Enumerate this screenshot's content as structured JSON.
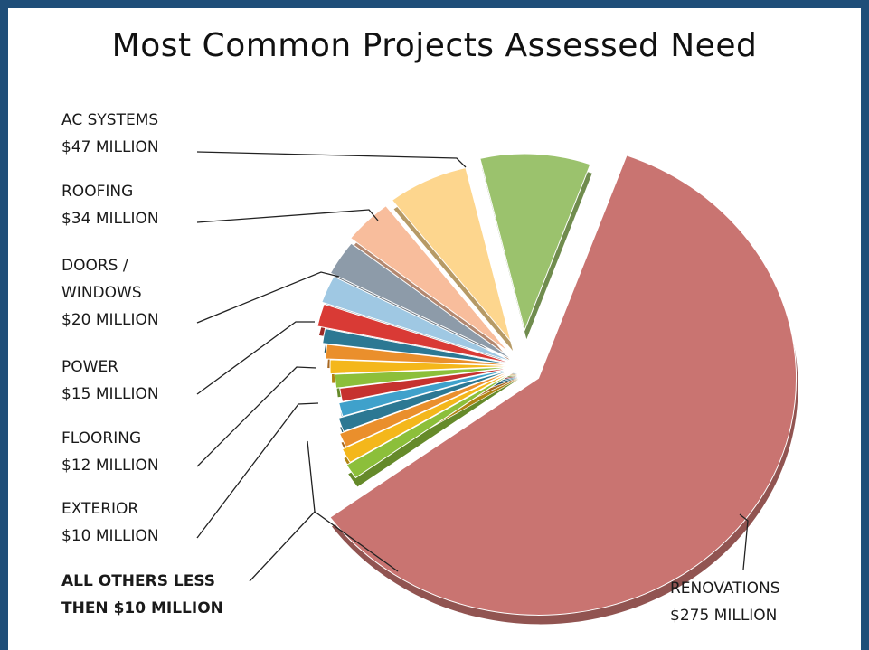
{
  "page": {
    "title": "Most Common Projects Assessed Need"
  },
  "chart_data": {
    "type": "pie",
    "title": "Most Common Projects Assessed Need",
    "units": "$ MILLION",
    "slices": [
      {
        "category": "AC SYSTEMS",
        "value": 47,
        "label_lines": [
          "AC  SYSTEMS",
          "$47 MILLION"
        ],
        "color": "#9bc26d"
      },
      {
        "category": "ROOFING",
        "value": 34,
        "label_lines": [
          "ROOFING",
          "$34 MILLION"
        ],
        "color": "#fdd68e"
      },
      {
        "category": "DOORS / WINDOWS",
        "value": 20,
        "label_lines": [
          "DOORS /",
          "WINDOWS",
          "$20 MILLION"
        ],
        "color": "#f8bd9c"
      },
      {
        "category": "POWER",
        "value": 15,
        "label_lines": [
          "POWER",
          "$15 MILLION"
        ],
        "color": "#8d9ba9"
      },
      {
        "category": "FLOORING",
        "value": 12,
        "label_lines": [
          "FLOORING",
          "$12 MILLION"
        ],
        "color": "#9fc8e3"
      },
      {
        "category": "EXTERIOR",
        "value": 10,
        "label_lines": [
          "EXTERIOR",
          "$10 MILLION"
        ],
        "color": "#d93a35"
      },
      {
        "category": "ALL OTHERS LESS THEN $10 MILLION",
        "value": 67,
        "label_lines": [
          "ALL OTHERS LESS",
          "THEN $10 MILLION"
        ],
        "bold": true,
        "colors": [
          "#8cbf3a",
          "#f4b71b",
          "#ea8f2c",
          "#2c7893",
          "#3fa1cb",
          "#c6322f",
          "#8cbf3a",
          "#f4b71b",
          "#ea8f2c",
          "#2c7893"
        ]
      },
      {
        "category": "RENOVATIONS",
        "value": 275,
        "label_lines": [
          "RENOVATIONS",
          "$275 MILLION"
        ],
        "color": "#c97471"
      }
    ],
    "legend": "none"
  }
}
